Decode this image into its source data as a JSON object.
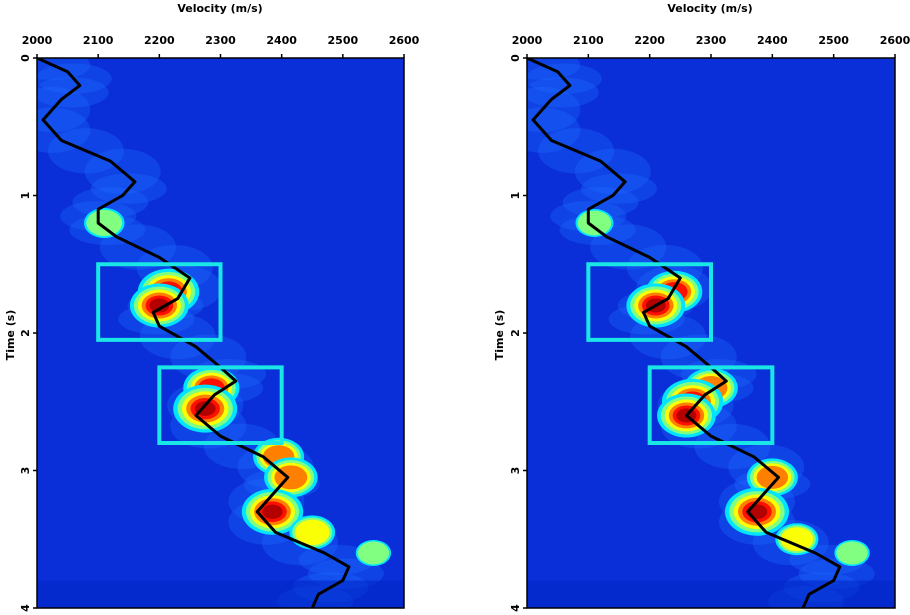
{
  "colors": {
    "background_low": "#00007f",
    "field_mid": "#0040ff",
    "annotation_box": "#1ae6e6",
    "curve": "#000000",
    "peak_hot": "#e00000"
  },
  "chart_data": [
    {
      "type": "heatmap",
      "title": "",
      "xlabel": "Velocity (m/s)",
      "ylabel": "Time (s)",
      "xlim": [
        2000,
        2600
      ],
      "ylim": [
        0,
        4
      ],
      "x_ticks": [
        "2000",
        "2100",
        "2200",
        "2300",
        "2400",
        "2500",
        "2600"
      ],
      "y_ticks": [
        "0",
        "1",
        "2",
        "3",
        "4"
      ],
      "x_axis_position": "top",
      "y_axis_inverted": true,
      "colormap": "jet",
      "curve": {
        "t": [
          0,
          0.1,
          0.2,
          0.3,
          0.45,
          0.6,
          0.75,
          0.9,
          1.0,
          1.1,
          1.2,
          1.3,
          1.45,
          1.6,
          1.75,
          1.85,
          1.95,
          2.1,
          2.25,
          2.35,
          2.45,
          2.6,
          2.75,
          2.9,
          3.05,
          3.15,
          3.3,
          3.45,
          3.6,
          3.7,
          3.8,
          3.9,
          4.0
        ],
        "v": [
          2000,
          2050,
          2070,
          2040,
          2010,
          2040,
          2120,
          2160,
          2140,
          2100,
          2100,
          2130,
          2200,
          2250,
          2230,
          2190,
          2200,
          2260,
          2300,
          2325,
          2290,
          2260,
          2300,
          2370,
          2410,
          2390,
          2360,
          2390,
          2470,
          2510,
          2500,
          2460,
          2450
        ]
      },
      "boxes": [
        {
          "v": [
            2100,
            2300
          ],
          "t": [
            1.5,
            2.05
          ]
        },
        {
          "v": [
            2200,
            2400
          ],
          "t": [
            2.25,
            2.8
          ]
        }
      ],
      "peaks": [
        {
          "t": 1.2,
          "v": 2110,
          "a": 0.55
        },
        {
          "t": 1.7,
          "v": 2215,
          "a": 0.95
        },
        {
          "t": 1.8,
          "v": 2200,
          "a": 0.9
        },
        {
          "t": 2.4,
          "v": 2285,
          "a": 0.85
        },
        {
          "t": 2.55,
          "v": 2275,
          "a": 1.0
        },
        {
          "t": 2.9,
          "v": 2395,
          "a": 0.75
        },
        {
          "t": 3.05,
          "v": 2415,
          "a": 0.8
        },
        {
          "t": 3.3,
          "v": 2385,
          "a": 0.95
        },
        {
          "t": 3.45,
          "v": 2450,
          "a": 0.65
        },
        {
          "t": 3.6,
          "v": 2550,
          "a": 0.45
        }
      ]
    },
    {
      "type": "heatmap",
      "title": "",
      "xlabel": "Velocity (m/s)",
      "ylabel": "Time (s)",
      "xlim": [
        2000,
        2600
      ],
      "ylim": [
        0,
        4
      ],
      "x_ticks": [
        "2000",
        "2100",
        "2200",
        "2300",
        "2400",
        "2500",
        "2600"
      ],
      "y_ticks": [
        "0",
        "1",
        "2",
        "3",
        "4"
      ],
      "x_axis_position": "top",
      "y_axis_inverted": true,
      "colormap": "jet",
      "curve": {
        "t": [
          0,
          0.1,
          0.2,
          0.3,
          0.45,
          0.6,
          0.75,
          0.9,
          1.0,
          1.1,
          1.2,
          1.3,
          1.45,
          1.6,
          1.75,
          1.85,
          1.95,
          2.1,
          2.25,
          2.35,
          2.45,
          2.6,
          2.75,
          2.9,
          3.05,
          3.15,
          3.3,
          3.45,
          3.6,
          3.7,
          3.8,
          3.9,
          4.0
        ],
        "v": [
          2000,
          2050,
          2070,
          2040,
          2010,
          2040,
          2120,
          2160,
          2140,
          2100,
          2100,
          2130,
          2200,
          2250,
          2230,
          2190,
          2200,
          2260,
          2300,
          2325,
          2290,
          2260,
          2300,
          2370,
          2410,
          2390,
          2360,
          2390,
          2470,
          2510,
          2500,
          2460,
          2450
        ]
      },
      "boxes": [
        {
          "v": [
            2100,
            2300
          ],
          "t": [
            1.5,
            2.05
          ]
        },
        {
          "v": [
            2200,
            2400
          ],
          "t": [
            2.25,
            2.8
          ]
        }
      ],
      "peaks": [
        {
          "t": 1.2,
          "v": 2110,
          "a": 0.5
        },
        {
          "t": 1.7,
          "v": 2240,
          "a": 0.85
        },
        {
          "t": 1.8,
          "v": 2210,
          "a": 0.9
        },
        {
          "t": 2.4,
          "v": 2300,
          "a": 0.8
        },
        {
          "t": 2.5,
          "v": 2270,
          "a": 0.95
        },
        {
          "t": 2.6,
          "v": 2260,
          "a": 0.9
        },
        {
          "t": 3.05,
          "v": 2400,
          "a": 0.75
        },
        {
          "t": 3.3,
          "v": 2375,
          "a": 1.0
        },
        {
          "t": 3.5,
          "v": 2440,
          "a": 0.6
        },
        {
          "t": 3.6,
          "v": 2530,
          "a": 0.45
        }
      ]
    }
  ]
}
